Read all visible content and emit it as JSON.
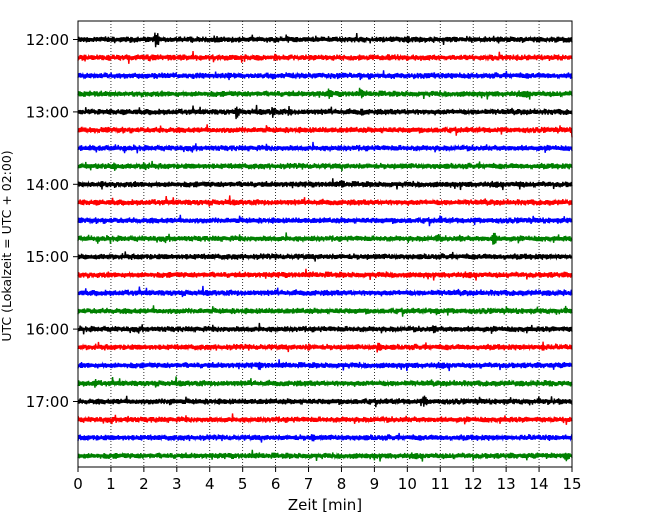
{
  "chart_data": {
    "type": "line",
    "title": "",
    "xlabel": "Zeit  [min]",
    "ylabel": "UTC (Lokalzeit = UTC + 02:00)",
    "xlim": [
      0,
      15
    ],
    "x_ticks": [
      "0",
      "1",
      "2",
      "3",
      "4",
      "5",
      "6",
      "7",
      "8",
      "9",
      "10",
      "11",
      "12",
      "13",
      "14",
      "15"
    ],
    "y_ticks": [
      "12:00",
      "13:00",
      "14:00",
      "15:00",
      "16:00",
      "17:00"
    ],
    "start_time": "12:00",
    "end_time": "18:00",
    "trace_interval_min": 15,
    "trace_count": 24,
    "colors": [
      "#000000",
      "#ff0000",
      "#0000ff",
      "#008000"
    ],
    "grid": "vertical dotted at each minute",
    "events": [
      {
        "trace": 0,
        "minute": 2.35,
        "amplitude": 12
      },
      {
        "trace": 0,
        "minute": 10.0,
        "amplitude": 5
      },
      {
        "trace": 3,
        "minute": 7.6,
        "amplitude": 8
      },
      {
        "trace": 3,
        "minute": 8.6,
        "amplitude": 6
      },
      {
        "trace": 3,
        "minute": 13.6,
        "amplitude": 6
      },
      {
        "trace": 4,
        "minute": 4.8,
        "amplitude": 9
      },
      {
        "trace": 4,
        "minute": 5.9,
        "amplitude": 8
      },
      {
        "trace": 4,
        "minute": 6.4,
        "amplitude": 7
      },
      {
        "trace": 4,
        "minute": 8.6,
        "amplitude": 6
      },
      {
        "trace": 5,
        "minute": 15.0,
        "amplitude": 8
      },
      {
        "trace": 5,
        "minute": 2.5,
        "amplitude": 5
      },
      {
        "trace": 7,
        "minute": 1.1,
        "amplitude": 7
      },
      {
        "trace": 7,
        "minute": 2.0,
        "amplitude": 7
      },
      {
        "trace": 8,
        "minute": 0.7,
        "amplitude": 7
      },
      {
        "trace": 8,
        "minute": 8.0,
        "amplitude": 7
      },
      {
        "trace": 8,
        "minute": 13.4,
        "amplitude": 6
      },
      {
        "trace": 10,
        "minute": 11.0,
        "amplitude": 6
      },
      {
        "trace": 11,
        "minute": 10.9,
        "amplitude": 8
      },
      {
        "trace": 11,
        "minute": 11.6,
        "amplitude": 6
      },
      {
        "trace": 11,
        "minute": 12.6,
        "amplitude": 10
      },
      {
        "trace": 13,
        "minute": 9.4,
        "amplitude": 5
      },
      {
        "trace": 15,
        "minute": 10.9,
        "amplitude": 6
      },
      {
        "trace": 16,
        "minute": 10.8,
        "amplitude": 7
      },
      {
        "trace": 17,
        "minute": 9.1,
        "amplitude": 8
      },
      {
        "trace": 17,
        "minute": 7.0,
        "amplitude": 6
      },
      {
        "trace": 17,
        "minute": 14.1,
        "amplitude": 7
      },
      {
        "trace": 18,
        "minute": 5.5,
        "amplitude": 6
      },
      {
        "trace": 19,
        "minute": 0.5,
        "amplitude": 6
      },
      {
        "trace": 19,
        "minute": 14.3,
        "amplitude": 7
      },
      {
        "trace": 20,
        "minute": 10.5,
        "amplitude": 9
      },
      {
        "trace": 20,
        "minute": 2.8,
        "amplitude": 6
      },
      {
        "trace": 21,
        "minute": 1.5,
        "amplitude": 5
      },
      {
        "trace": 22,
        "minute": 7.1,
        "amplitude": 6
      },
      {
        "trace": 23,
        "minute": 14.8,
        "amplitude": 7
      }
    ]
  }
}
